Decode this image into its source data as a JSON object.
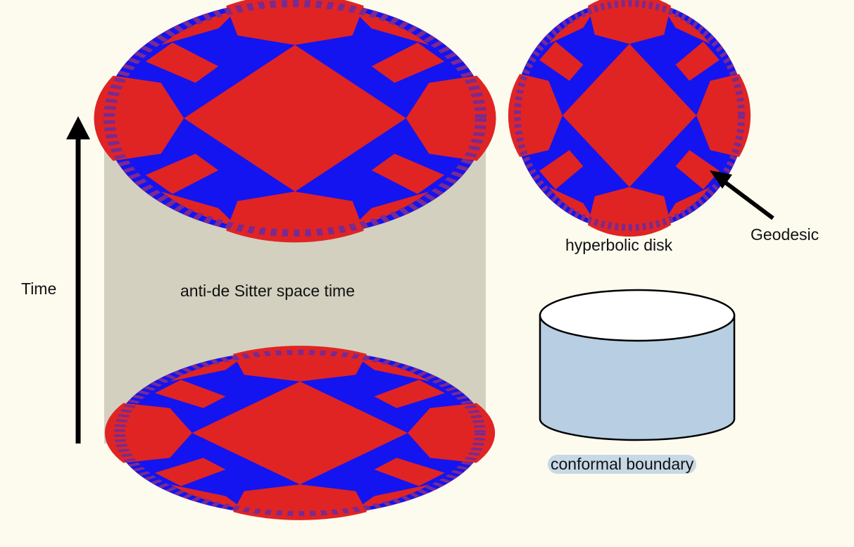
{
  "labels": {
    "time": "Time",
    "ads": "anti-de Sitter space time",
    "hyperbolic_disk": "hyperbolic disk",
    "geodesic": "Geodesic",
    "conformal_boundary": "conformal boundary"
  },
  "colors": {
    "background": "#fdfaee",
    "tile_red": "#e02424",
    "tile_blue": "#1414f0",
    "cylinder_fill": "#d3d0bf",
    "boundary_cylinder": "#b8cee2",
    "arrow": "#000000"
  }
}
